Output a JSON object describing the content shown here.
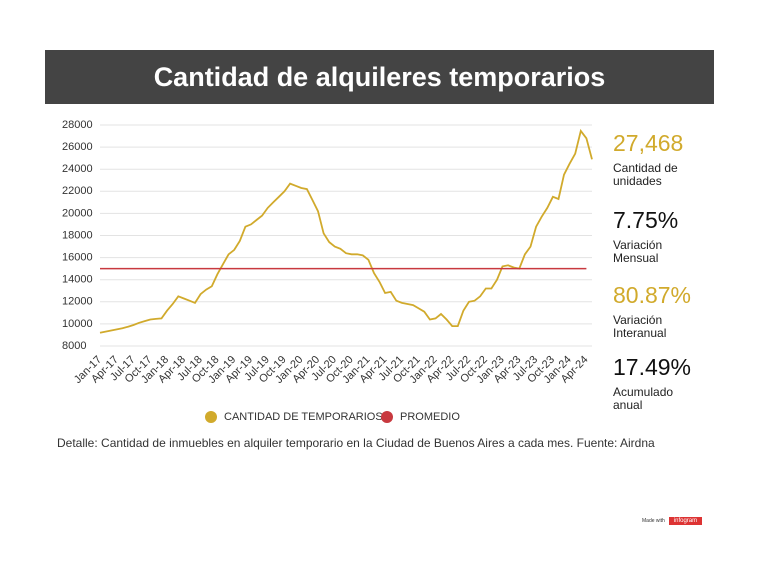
{
  "header": {
    "title": "Cantidad de alquileres temporarios"
  },
  "chart_data": {
    "type": "line",
    "categories": [
      "Jan-17",
      null,
      null,
      "Apr-17",
      null,
      null,
      "Jul-17",
      null,
      null,
      "Oct-17",
      null,
      null,
      "Jan-18",
      null,
      null,
      "Apr-18",
      null,
      null,
      "Jul-18",
      null,
      null,
      "Oct-18",
      null,
      null,
      "Jan-19",
      null,
      null,
      "Apr-19",
      null,
      null,
      "Jul-19",
      null,
      null,
      "Oct-19",
      null,
      null,
      "Jan-20",
      null,
      null,
      "Apr-20",
      null,
      null,
      "Jul-20",
      null,
      null,
      "Oct-20",
      null,
      null,
      "Jan-21",
      null,
      null,
      "Apr-21",
      null,
      null,
      "Jul-21",
      null,
      null,
      "Oct-21",
      null,
      null,
      "Jan-22",
      null,
      null,
      "Apr-22",
      null,
      null,
      "Jul-22",
      null,
      null,
      "Oct-22",
      null,
      null,
      "Jan-23",
      null,
      null,
      "Apr-23",
      null,
      null,
      "Jul-23",
      null,
      null,
      "Oct-23",
      null,
      null,
      "Jan-24",
      null,
      null,
      "Apr-24",
      null
    ],
    "series": [
      {
        "name": "CANTIDAD DE TEMPORARIOS",
        "color": "#d1aa2c",
        "values": [
          9200,
          9300,
          9400,
          9500,
          9600,
          9750,
          9900,
          10100,
          10250,
          10400,
          10450,
          10500,
          11200,
          11800,
          12500,
          12300,
          12100,
          11900,
          12700,
          13100,
          13400,
          14500,
          15400,
          16300,
          16700,
          17500,
          18800,
          19000,
          19400,
          19800,
          20500,
          21000,
          21500,
          22000,
          22700,
          22500,
          22300,
          22200,
          21200,
          20200,
          18200,
          17400,
          17000,
          16800,
          16400,
          16300,
          16300,
          16200,
          15800,
          14600,
          13800,
          12800,
          12900,
          12100,
          11900,
          11800,
          11700,
          11400,
          11100,
          10400,
          10500,
          10900,
          10400,
          9800,
          9800,
          11200,
          12000,
          12100,
          12500,
          13200,
          13200,
          14000,
          15200,
          15300,
          15100,
          15000,
          16300,
          17000,
          18800,
          19700,
          20500,
          21500,
          21300,
          23500,
          24500,
          25400,
          27468,
          26800,
          24900
        ]
      },
      {
        "name": "PROMEDIO",
        "color": "#c8393f",
        "values": [
          15000,
          15000,
          15000,
          15000,
          15000,
          15000,
          15000,
          15000,
          15000,
          15000,
          15000,
          15000,
          15000,
          15000,
          15000,
          15000,
          15000,
          15000,
          15000,
          15000,
          15000,
          15000,
          15000,
          15000,
          15000,
          15000,
          15000,
          15000,
          15000,
          15000,
          15000,
          15000,
          15000,
          15000,
          15000,
          15000,
          15000,
          15000,
          15000,
          15000,
          15000,
          15000,
          15000,
          15000,
          15000,
          15000,
          15000,
          15000,
          15000,
          15000,
          15000,
          15000,
          15000,
          15000,
          15000,
          15000,
          15000,
          15000,
          15000,
          15000,
          15000,
          15000,
          15000,
          15000,
          15000,
          15000,
          15000,
          15000,
          15000,
          15000,
          15000,
          15000,
          15000,
          15000,
          15000,
          15000,
          15000,
          15000,
          15000,
          15000,
          15000,
          15000,
          15000,
          15000,
          15000,
          15000,
          15000,
          15000,
          null
        ]
      }
    ],
    "ylim": [
      8000,
      28000
    ],
    "yticks": [
      8000,
      10000,
      12000,
      14000,
      16000,
      18000,
      20000,
      22000,
      24000,
      26000,
      28000
    ],
    "grid": true,
    "legend": "bottom"
  },
  "stats": [
    {
      "value": "27,468",
      "label": "Cantidad de unidades",
      "color": "#d1aa2c"
    },
    {
      "value": "7.75%",
      "label": "Variación Mensual",
      "color": "#111111"
    },
    {
      "value": "80.87%",
      "label": "Variación Interanual",
      "color": "#d1aa2c"
    },
    {
      "value": "17.49%",
      "label": "Acumulado anual",
      "color": "#111111"
    }
  ],
  "note": "Detalle: Cantidad de inmuebles en alquiler temporario en la Ciudad de Buenos Aires a cada mes. Fuente: Airdna",
  "credit": {
    "text": "Made with",
    "brand": "infogram"
  }
}
